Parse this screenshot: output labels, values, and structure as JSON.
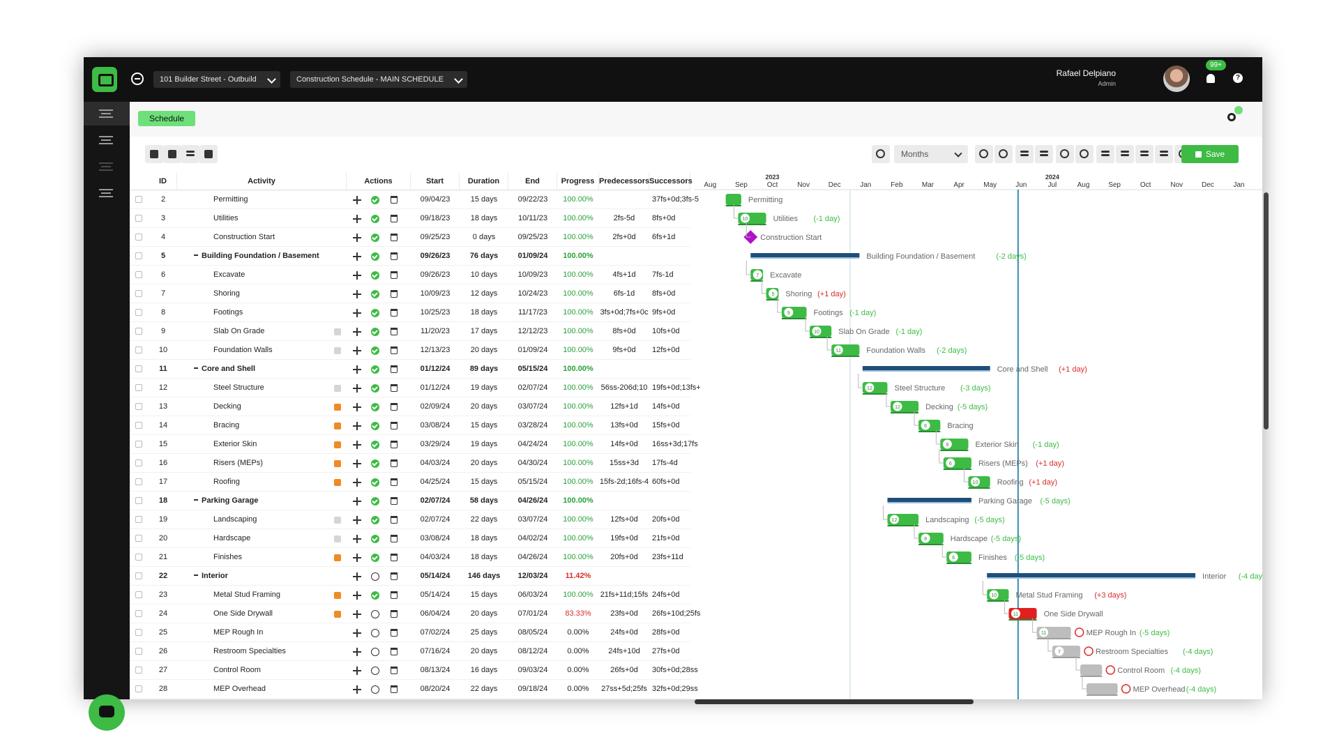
{
  "header": {
    "project_select": "101 Builder Street - Outbuild",
    "schedule_select": "Construction Schedule - MAIN SCHEDULE",
    "user_name": "Rafael Delpiano",
    "user_role": "Admin",
    "notification_count": "99+",
    "help_label": "?"
  },
  "subheader": {
    "schedule_tab": "Schedule"
  },
  "toolbar": {
    "timescale": "Months",
    "save_label": "Save"
  },
  "columns": {
    "id": "ID",
    "activity": "Activity",
    "actions": "Actions",
    "start": "Start",
    "duration": "Duration",
    "end": "End",
    "progress": "Progress",
    "predecessors": "Predecessors",
    "successors": "Successors"
  },
  "rows": [
    {
      "id": "2",
      "activity": "Permitting",
      "start": "09/04/23",
      "duration": "15 days",
      "end": "09/22/23",
      "progress": "100.00%",
      "pred": "",
      "succ": "37fs+0d;3fs-5",
      "group": false,
      "note": "",
      "status": "done"
    },
    {
      "id": "3",
      "activity": "Utilities",
      "start": "09/18/23",
      "duration": "18 days",
      "end": "10/11/23",
      "progress": "100.00%",
      "pred": "2fs-5d",
      "succ": "8fs+0d",
      "group": false,
      "note": "",
      "status": "done"
    },
    {
      "id": "4",
      "activity": "Construction Start",
      "start": "09/25/23",
      "duration": "0 days",
      "end": "09/25/23",
      "progress": "100.00%",
      "pred": "2fs+0d",
      "succ": "6fs+1d",
      "group": false,
      "note": "",
      "status": "done"
    },
    {
      "id": "5",
      "activity": "Building Foundation / Basement",
      "start": "09/26/23",
      "duration": "76 days",
      "end": "01/09/24",
      "progress": "100.00%",
      "pred": "",
      "succ": "",
      "group": true,
      "note": "",
      "status": "done"
    },
    {
      "id": "6",
      "activity": "Excavate",
      "start": "09/26/23",
      "duration": "10 days",
      "end": "10/09/23",
      "progress": "100.00%",
      "pred": "4fs+1d",
      "succ": "7fs-1d",
      "group": false,
      "note": "",
      "status": "done"
    },
    {
      "id": "7",
      "activity": "Shoring",
      "start": "10/09/23",
      "duration": "12 days",
      "end": "10/24/23",
      "progress": "100.00%",
      "pred": "6fs-1d",
      "succ": "8fs+0d",
      "group": false,
      "note": "",
      "status": "done"
    },
    {
      "id": "8",
      "activity": "Footings",
      "start": "10/25/23",
      "duration": "18 days",
      "end": "11/17/23",
      "progress": "100.00%",
      "pred": "3fs+0d;7fs+0c",
      "succ": "9fs+0d",
      "group": false,
      "note": "",
      "status": "done"
    },
    {
      "id": "9",
      "activity": "Slab On Grade",
      "start": "11/20/23",
      "duration": "17 days",
      "end": "12/12/23",
      "progress": "100.00%",
      "pred": "8fs+0d",
      "succ": "10fs+0d",
      "group": false,
      "note": "grey",
      "status": "done"
    },
    {
      "id": "10",
      "activity": "Foundation Walls",
      "start": "12/13/23",
      "duration": "20 days",
      "end": "01/09/24",
      "progress": "100.00%",
      "pred": "9fs+0d",
      "succ": "12fs+0d",
      "group": false,
      "note": "grey",
      "status": "done"
    },
    {
      "id": "11",
      "activity": "Core and Shell",
      "start": "01/12/24",
      "duration": "89 days",
      "end": "05/15/24",
      "progress": "100.00%",
      "pred": "",
      "succ": "",
      "group": true,
      "note": "",
      "status": "done"
    },
    {
      "id": "12",
      "activity": "Steel Structure",
      "start": "01/12/24",
      "duration": "19 days",
      "end": "02/07/24",
      "progress": "100.00%",
      "pred": "56ss-206d;10",
      "succ": "19fs+0d;13fs+",
      "group": false,
      "note": "grey",
      "status": "done"
    },
    {
      "id": "13",
      "activity": "Decking",
      "start": "02/09/24",
      "duration": "20 days",
      "end": "03/07/24",
      "progress": "100.00%",
      "pred": "12fs+1d",
      "succ": "14fs+0d",
      "group": false,
      "note": "orange",
      "status": "done"
    },
    {
      "id": "14",
      "activity": "Bracing",
      "start": "03/08/24",
      "duration": "15 days",
      "end": "03/28/24",
      "progress": "100.00%",
      "pred": "13fs+0d",
      "succ": "15fs+0d",
      "group": false,
      "note": "orange",
      "status": "done"
    },
    {
      "id": "15",
      "activity": "Exterior Skin",
      "start": "03/29/24",
      "duration": "19 days",
      "end": "04/24/24",
      "progress": "100.00%",
      "pred": "14fs+0d",
      "succ": "16ss+3d;17fs",
      "group": false,
      "note": "orange",
      "status": "done"
    },
    {
      "id": "16",
      "activity": "Risers (MEPs)",
      "start": "04/03/24",
      "duration": "20 days",
      "end": "04/30/24",
      "progress": "100.00%",
      "pred": "15ss+3d",
      "succ": "17fs-4d",
      "group": false,
      "note": "orange",
      "status": "done"
    },
    {
      "id": "17",
      "activity": "Roofing",
      "start": "04/25/24",
      "duration": "15 days",
      "end": "05/15/24",
      "progress": "100.00%",
      "pred": "15fs-2d;16fs-4",
      "succ": "60fs+0d",
      "group": false,
      "note": "orange",
      "status": "done"
    },
    {
      "id": "18",
      "activity": "Parking Garage",
      "start": "02/07/24",
      "duration": "58 days",
      "end": "04/26/24",
      "progress": "100.00%",
      "pred": "",
      "succ": "",
      "group": true,
      "note": "",
      "status": "done"
    },
    {
      "id": "19",
      "activity": "Landscaping",
      "start": "02/07/24",
      "duration": "22 days",
      "end": "03/07/24",
      "progress": "100.00%",
      "pred": "12fs+0d",
      "succ": "20fs+0d",
      "group": false,
      "note": "grey",
      "status": "done"
    },
    {
      "id": "20",
      "activity": "Hardscape",
      "start": "03/08/24",
      "duration": "18 days",
      "end": "04/02/24",
      "progress": "100.00%",
      "pred": "19fs+0d",
      "succ": "21fs+0d",
      "group": false,
      "note": "grey",
      "status": "done"
    },
    {
      "id": "21",
      "activity": "Finishes",
      "start": "04/03/24",
      "duration": "18 days",
      "end": "04/26/24",
      "progress": "100.00%",
      "pred": "20fs+0d",
      "succ": "23fs+11d",
      "group": false,
      "note": "orange",
      "status": "done"
    },
    {
      "id": "22",
      "activity": "Interior",
      "start": "05/14/24",
      "duration": "146 days",
      "end": "12/03/24",
      "progress": "11.42%",
      "pred": "",
      "succ": "",
      "group": true,
      "note": "",
      "status": "open"
    },
    {
      "id": "23",
      "activity": "Metal Stud Framing",
      "start": "05/14/24",
      "duration": "15 days",
      "end": "06/03/24",
      "progress": "100.00%",
      "pred": "21fs+11d;15fs",
      "succ": "24fs+0d",
      "group": false,
      "note": "orange",
      "status": "done"
    },
    {
      "id": "24",
      "activity": "One Side Drywall",
      "start": "06/04/24",
      "duration": "20 days",
      "end": "07/01/24",
      "progress": "83.33%",
      "pred": "23fs+0d",
      "succ": "26fs+10d;25fs",
      "group": false,
      "note": "orange",
      "status": "open"
    },
    {
      "id": "25",
      "activity": "MEP Rough In",
      "start": "07/02/24",
      "duration": "25 days",
      "end": "08/05/24",
      "progress": "0.00%",
      "pred": "24fs+0d",
      "succ": "28fs+0d",
      "group": false,
      "note": "",
      "status": "open"
    },
    {
      "id": "26",
      "activity": "Restroom Specialties",
      "start": "07/16/24",
      "duration": "20 days",
      "end": "08/12/24",
      "progress": "0.00%",
      "pred": "24fs+10d",
      "succ": "27fs+0d",
      "group": false,
      "note": "",
      "status": "open"
    },
    {
      "id": "27",
      "activity": "Control Room",
      "start": "08/13/24",
      "duration": "16 days",
      "end": "09/03/24",
      "progress": "0.00%",
      "pred": "26fs+0d",
      "succ": "30fs+0d;28ss",
      "group": false,
      "note": "",
      "status": "open"
    },
    {
      "id": "28",
      "activity": "MEP Overhead",
      "start": "08/20/24",
      "duration": "22 days",
      "end": "09/18/24",
      "progress": "0.00%",
      "pred": "27ss+5d;25fs",
      "succ": "32fs+0d;29ss",
      "group": false,
      "note": "",
      "status": "open"
    }
  ],
  "gantt": {
    "year_labels": [
      {
        "month_index": 2,
        "text": "2023"
      },
      {
        "month_index": 11,
        "text": "2024"
      }
    ],
    "months": [
      "Aug",
      "Sep",
      "Oct",
      "Nov",
      "Dec",
      "Jan",
      "Feb",
      "Mar",
      "Apr",
      "May",
      "Jun",
      "Jul",
      "Aug",
      "Sep",
      "Oct",
      "Nov",
      "Dec",
      "Jan"
    ],
    "today_month": 10.4,
    "items": [
      {
        "type": "bar",
        "start": 1.0,
        "end": 1.5,
        "color": "#3dbb45",
        "badge": "",
        "label": "Permitting",
        "delta": ""
      },
      {
        "type": "bar",
        "start": 1.4,
        "end": 2.3,
        "color": "#3dbb45",
        "badge": "10",
        "label": "Utilities",
        "delta": "(-1 day)"
      },
      {
        "type": "milestone",
        "start": 1.8,
        "end": 1.8,
        "color": "#b012c8",
        "badge": "",
        "label": "Construction Start",
        "delta": ""
      },
      {
        "type": "summary",
        "start": 1.8,
        "end": 5.3,
        "color": "#1f4e79",
        "badge": "",
        "label": "Building Foundation / Basement",
        "delta": "(-2 days)"
      },
      {
        "type": "bar",
        "start": 1.8,
        "end": 2.2,
        "color": "#3dbb45",
        "badge": "7",
        "label": "Excavate",
        "delta": ""
      },
      {
        "type": "bar",
        "start": 2.3,
        "end": 2.7,
        "color": "#3dbb45",
        "badge": "5",
        "label": "Shoring",
        "delta": "(+1 day)"
      },
      {
        "type": "bar",
        "start": 2.8,
        "end": 3.6,
        "color": "#3dbb45",
        "badge": "9",
        "label": "Footings",
        "delta": "(-1 day)"
      },
      {
        "type": "bar",
        "start": 3.7,
        "end": 4.4,
        "color": "#3dbb45",
        "badge": "10",
        "label": "Slab On Grade",
        "delta": "(-1 day)"
      },
      {
        "type": "bar",
        "start": 4.4,
        "end": 5.3,
        "color": "#3dbb45",
        "badge": "11",
        "label": "Foundation Walls",
        "delta": "(-2 days)"
      },
      {
        "type": "summary",
        "start": 5.4,
        "end": 9.5,
        "color": "#1f4e79",
        "badge": "",
        "label": "Core and Shell",
        "delta": "(+1 day)"
      },
      {
        "type": "bar",
        "start": 5.4,
        "end": 6.2,
        "color": "#3dbb45",
        "badge": "12",
        "label": "Steel Structure",
        "delta": "(-3 days)"
      },
      {
        "type": "bar",
        "start": 6.3,
        "end": 7.2,
        "color": "#3dbb45",
        "badge": "12",
        "label": "Decking",
        "delta": "(-5 days)"
      },
      {
        "type": "bar",
        "start": 7.2,
        "end": 7.9,
        "color": "#3dbb45",
        "badge": "6",
        "label": "Bracing",
        "delta": ""
      },
      {
        "type": "bar",
        "start": 7.9,
        "end": 8.8,
        "color": "#3dbb45",
        "badge": "9",
        "label": "Exterior Skin",
        "delta": "(-1 day)"
      },
      {
        "type": "bar",
        "start": 8.0,
        "end": 8.9,
        "color": "#3dbb45",
        "badge": "6",
        "label": "Risers (MEPs)",
        "delta": "(+1 day)"
      },
      {
        "type": "bar",
        "start": 8.8,
        "end": 9.5,
        "color": "#3dbb45",
        "badge": "10",
        "label": "Roofing",
        "delta": "(+1 day)"
      },
      {
        "type": "summary",
        "start": 6.2,
        "end": 8.9,
        "color": "#1f4e79",
        "badge": "",
        "label": "Parking Garage",
        "delta": "(-5 days)"
      },
      {
        "type": "bar",
        "start": 6.2,
        "end": 7.2,
        "color": "#3dbb45",
        "badge": "12",
        "label": "Landscaping",
        "delta": "(-5 days)"
      },
      {
        "type": "bar",
        "start": 7.2,
        "end": 8.0,
        "color": "#3dbb45",
        "badge": "8",
        "label": "Hardscape",
        "delta": "(-5 days)"
      },
      {
        "type": "bar",
        "start": 8.1,
        "end": 8.9,
        "color": "#3dbb45",
        "badge": "6",
        "label": "Finishes",
        "delta": "(-5 days)"
      },
      {
        "type": "summary",
        "start": 9.4,
        "end": 16.1,
        "color": "#1f4e79",
        "badge": "",
        "label": "Interior",
        "delta": "(-4 day"
      },
      {
        "type": "bar",
        "start": 9.4,
        "end": 10.1,
        "color": "#3dbb45",
        "badge": "10",
        "label": "Metal Stud Framing",
        "delta": "(+3 days)"
      },
      {
        "type": "bar",
        "start": 10.1,
        "end": 11.0,
        "color": "#e02020",
        "badge": "11",
        "label": "One Side Drywall",
        "delta": ""
      },
      {
        "type": "bar",
        "start": 11.0,
        "end": 12.1,
        "color": "#bdbdbd",
        "badge": "11",
        "label": "MEP Rough In",
        "delta": "(-5 days)"
      },
      {
        "type": "bar",
        "start": 11.5,
        "end": 12.4,
        "color": "#bdbdbd",
        "badge": "7",
        "label": "Restroom Specialties",
        "delta": "(-4 days)"
      },
      {
        "type": "bar",
        "start": 12.4,
        "end": 13.1,
        "color": "#bdbdbd",
        "badge": "",
        "label": "Control Room",
        "delta": "(-4 days)"
      },
      {
        "type": "bar",
        "start": 12.6,
        "end": 13.6,
        "color": "#bdbdbd",
        "badge": "",
        "label": "MEP Overhead",
        "delta": "(-4 days)"
      }
    ]
  }
}
